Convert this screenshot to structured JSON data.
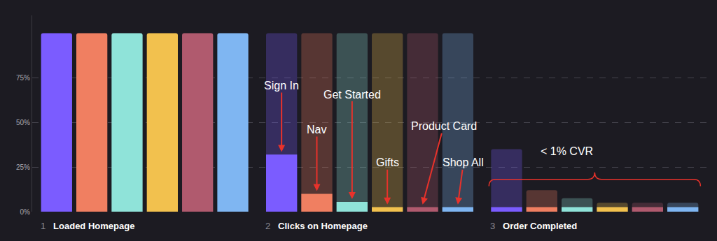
{
  "chart_data": {
    "type": "bar",
    "categories": [
      "Loaded Homepage",
      "Clicks on Homepage",
      "Order Completed"
    ],
    "step_numbers": [
      1,
      2,
      3
    ],
    "series": [
      {
        "name": "Sign In",
        "color": "#7b5cff",
        "values": [
          100,
          32,
          2.5
        ],
        "previous_values": [
          null,
          100,
          35
        ]
      },
      {
        "name": "Nav",
        "color": "#f07f61",
        "values": [
          100,
          10,
          2.5
        ],
        "previous_values": [
          null,
          100,
          12
        ]
      },
      {
        "name": "Get Started",
        "color": "#8fe3d9",
        "values": [
          100,
          5.5,
          2.5
        ],
        "previous_values": [
          null,
          100,
          7.5
        ]
      },
      {
        "name": "Gifts",
        "color": "#f2c14e",
        "values": [
          100,
          2.5,
          2.5
        ],
        "previous_values": [
          null,
          100,
          5
        ]
      },
      {
        "name": "Product Card",
        "color": "#b05a6e",
        "values": [
          100,
          2.5,
          2.5
        ],
        "previous_values": [
          null,
          100,
          5
        ]
      },
      {
        "name": "Shop All",
        "color": "#7fb6f2",
        "values": [
          100,
          2.5,
          2.5
        ],
        "previous_values": [
          null,
          100,
          5
        ]
      }
    ],
    "annotations": [
      "< 1% CVR"
    ],
    "ylim": [
      0,
      110
    ],
    "yticks": [
      {
        "value": 0,
        "label": "0%"
      },
      {
        "value": 25,
        "label": "25%"
      },
      {
        "value": 50,
        "label": "50%"
      },
      {
        "value": 75,
        "label": "75%"
      }
    ],
    "grid": true,
    "tick_labels": "y"
  }
}
